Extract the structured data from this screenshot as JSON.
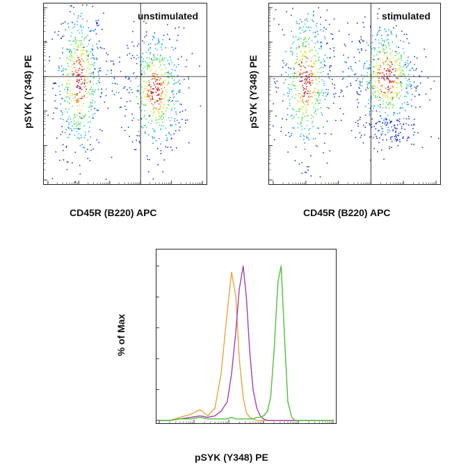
{
  "chart_data": [
    {
      "type": "scatter",
      "title": "unstimulated",
      "xlabel": "CD45R (B220) APC",
      "ylabel": "pSYK (Y348) PE",
      "xscale": "log",
      "yscale": "log",
      "xlim": [
        1,
        100000
      ],
      "ylim": [
        1,
        100000
      ],
      "quadrant_gate": {
        "x": 1000,
        "y": 1000
      },
      "grid": false,
      "populations": [
        {
          "center": [
            10,
            800
          ],
          "spread": [
            0.12,
            0.35
          ],
          "density": "high"
        },
        {
          "center": [
            3000,
            400
          ],
          "spread": [
            0.14,
            0.28
          ],
          "density": "high"
        },
        {
          "center": [
            100,
            700
          ],
          "spread": [
            0.35,
            0.2
          ],
          "density": "low"
        }
      ]
    },
    {
      "type": "scatter",
      "title": "stimulated",
      "xlabel": "CD45R (B220) APC",
      "ylabel": "pSYK (Y348) PE",
      "xscale": "log",
      "yscale": "log",
      "xlim": [
        1,
        100000
      ],
      "ylim": [
        1,
        100000
      ],
      "quadrant_gate": {
        "x": 1000,
        "y": 1000
      },
      "grid": false,
      "populations": [
        {
          "center": [
            10,
            800
          ],
          "spread": [
            0.12,
            0.35
          ],
          "density": "high"
        },
        {
          "center": [
            3000,
            1000
          ],
          "spread": [
            0.15,
            0.25
          ],
          "density": "high"
        },
        {
          "center": [
            3000,
            30
          ],
          "spread": [
            0.15,
            0.08
          ],
          "density": "low"
        },
        {
          "center": [
            300,
            1500
          ],
          "spread": [
            0.35,
            0.2
          ],
          "density": "low"
        }
      ]
    },
    {
      "type": "line",
      "title": "",
      "xlabel": "pSYK (Y348) PE",
      "ylabel": "% of Max",
      "xscale": "log",
      "xlim": [
        1,
        100000
      ],
      "ylim": [
        0,
        100
      ],
      "series": [
        {
          "color": "#e8a33c",
          "x": [
            1,
            2,
            4,
            8,
            15,
            25,
            40,
            60,
            90,
            120,
            160,
            200,
            260,
            320,
            400,
            500,
            640,
            800,
            1000,
            1300,
            1600,
            2000,
            3000,
            5000,
            10000,
            100000
          ],
          "y": [
            0,
            0,
            2,
            4,
            7,
            3,
            8,
            30,
            70,
            96,
            80,
            40,
            15,
            5,
            2,
            1,
            0,
            0,
            0,
            0,
            0,
            0,
            0,
            0,
            0,
            0
          ]
        },
        {
          "color": "#a03cb4",
          "x": [
            1,
            2,
            4,
            8,
            15,
            25,
            40,
            60,
            90,
            120,
            160,
            200,
            260,
            320,
            400,
            500,
            640,
            800,
            1000,
            1300,
            1600,
            2000,
            3000,
            5000,
            10000,
            100000
          ],
          "y": [
            0,
            0,
            1,
            2,
            3,
            2,
            3,
            6,
            12,
            30,
            58,
            85,
            100,
            80,
            45,
            20,
            8,
            3,
            1,
            0,
            0,
            0,
            0,
            0,
            0,
            0
          ]
        },
        {
          "color": "#4cbf3c",
          "x": [
            1,
            2,
            4,
            8,
            15,
            25,
            40,
            60,
            90,
            120,
            160,
            200,
            260,
            320,
            400,
            500,
            640,
            800,
            1000,
            1300,
            1600,
            2000,
            2600,
            3200,
            4000,
            5000,
            6500,
            8000,
            10000,
            100000
          ],
          "y": [
            0,
            0,
            1,
            1,
            2,
            1,
            1,
            1,
            1,
            2,
            1,
            1,
            1,
            1,
            1,
            1,
            2,
            2,
            3,
            6,
            15,
            45,
            90,
            100,
            55,
            12,
            2,
            0,
            0,
            0
          ]
        }
      ]
    }
  ]
}
